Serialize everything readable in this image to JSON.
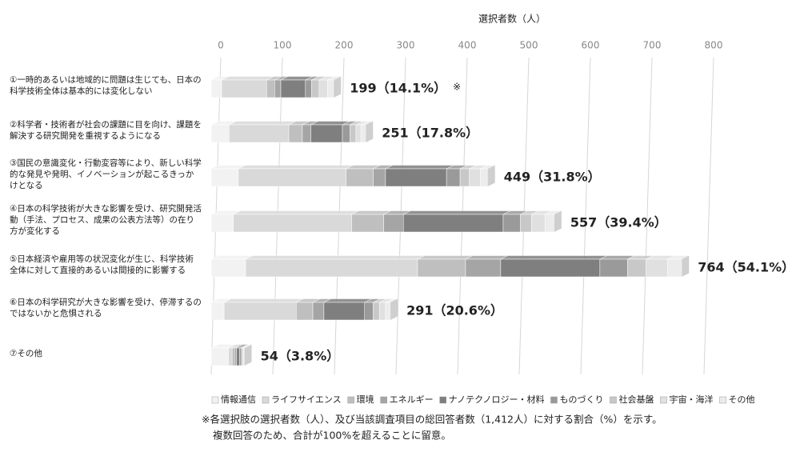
{
  "chart_data": {
    "type": "stacked-bar-3d",
    "xlabel": "選択者数（人）",
    "xlim": [
      0,
      800
    ],
    "xticks": [
      0,
      100,
      200,
      300,
      400,
      500,
      600,
      700,
      800
    ],
    "grid": true,
    "categories": [
      "①一時的あるいは地域的に問題は生じても、日本の科学技術全体は基本的には変化しない",
      "②科学者・技術者が社会の課題に目を向け、課題を解決する研究開発を重視するようになる",
      "③国民の意識変化・行動変容等により、新しい科学的な発見や発明、イノベーションが起こるきっかけとなる",
      "④日本の科学技術が大きな影響を受け、研究開発活動（手法、プロセス、成果の公表方法等）の在り方が変化する",
      "⑤日本経済や雇用等の状況変化が生じ、科学技術全体に対して直接的あるいは間接的に影響する",
      "⑥日本の科学研究が大きな影響を受け、停滞するのではないかと危惧される",
      "⑦その他"
    ],
    "totals": [
      199,
      251,
      449,
      557,
      764,
      291,
      54
    ],
    "value_labels": [
      "199（14.1%）",
      "251（17.8%）",
      "449（31.8%）",
      "557（39.4%）",
      "764（54.1%）",
      "291（20.6%）",
      "54（3.8%）"
    ],
    "annotation": "※",
    "series": [
      {
        "name": "情報通信",
        "color": "#f2f2f2",
        "values": [
          17,
          29,
          44,
          36,
          56,
          21,
          28
        ]
      },
      {
        "name": "ライフサイエンス",
        "color": "#d9d9d9",
        "values": [
          73,
          97,
          175,
          192,
          279,
          117,
          6
        ]
      },
      {
        "name": "環境",
        "color": "#bfbfbf",
        "values": [
          13,
          22,
          44,
          52,
          78,
          27,
          4
        ]
      },
      {
        "name": "エネルギー",
        "color": "#a5a5a5",
        "values": [
          10,
          14,
          20,
          32,
          57,
          18,
          3
        ]
      },
      {
        "name": "ナノテクノロジー・材料",
        "color": "#7f7f7f",
        "values": [
          40,
          51,
          99,
          162,
          161,
          66,
          5
        ]
      },
      {
        "name": "ものづくり",
        "color": "#9a9a9a",
        "values": [
          10,
          12,
          22,
          28,
          45,
          14,
          3
        ]
      },
      {
        "name": "社会基盤",
        "color": "#c8c8c8",
        "values": [
          12,
          10,
          15,
          18,
          30,
          10,
          2
        ]
      },
      {
        "name": "宇宙・海洋",
        "color": "#e0e0e0",
        "values": [
          14,
          8,
          18,
          22,
          35,
          10,
          2
        ]
      },
      {
        "name": "その他",
        "color": "#ececec",
        "values": [
          10,
          8,
          12,
          15,
          23,
          8,
          1
        ]
      }
    ],
    "footnotes": [
      "※各選択肢の選択者数（人）、及び当該調査項目の総回答者数（1,412人）に対する割合（%）を示す。",
      "複数回答のため、合計が100%を超えることに留意。"
    ]
  }
}
